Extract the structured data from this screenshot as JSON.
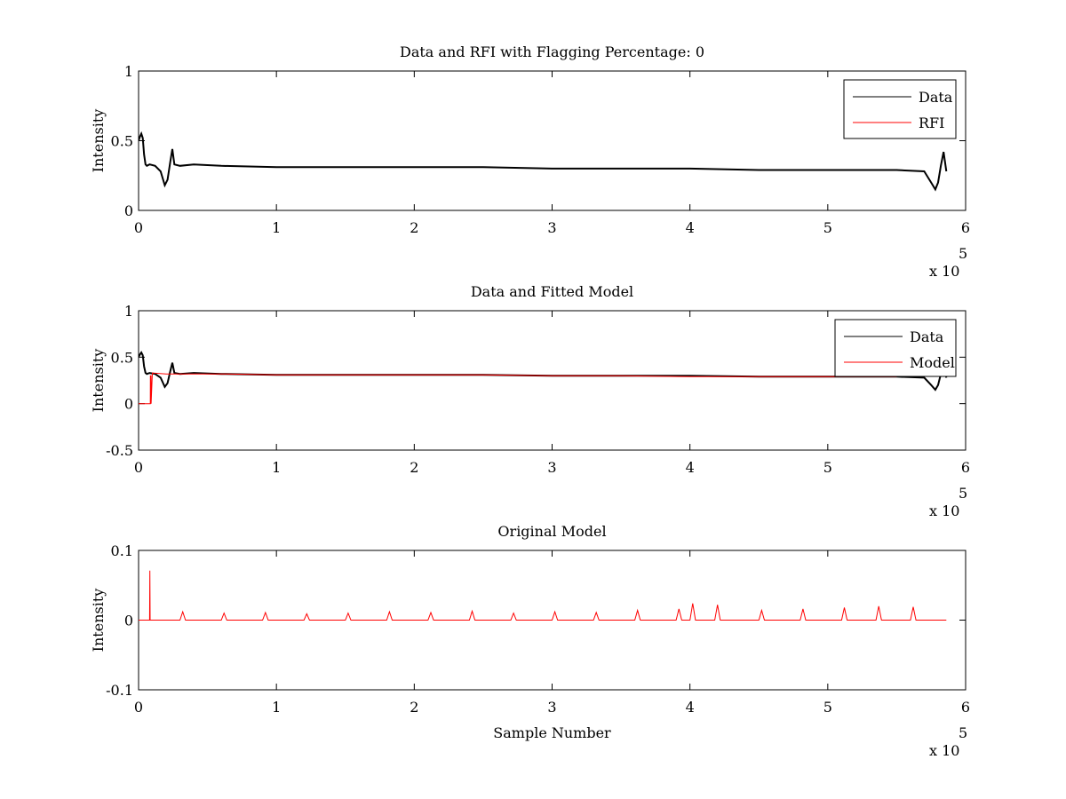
{
  "chart_data": [
    {
      "type": "line",
      "title": "Data and RFI with Flagging Percentage: 0",
      "xlabel": "",
      "ylabel": "Intensity",
      "xlim": [
        0,
        600000
      ],
      "ylim": [
        0,
        1
      ],
      "xticks": [
        0,
        1,
        2,
        3,
        4,
        5,
        6
      ],
      "yticks": [
        0,
        0.5,
        1
      ],
      "x_multiplier": "x 10",
      "x_exponent": "5",
      "legend": {
        "position": "top-right",
        "entries": [
          "Data",
          "RFI"
        ]
      },
      "series": [
        {
          "name": "Data",
          "color": "#000000",
          "x": [
            0,
            1000,
            2000,
            3000,
            4000,
            5000,
            6000,
            8000,
            12000,
            16000,
            19000,
            21000,
            23000,
            24500,
            26000,
            30000,
            40000,
            60000,
            100000,
            150000,
            200000,
            250000,
            300000,
            350000,
            400000,
            450000,
            500000,
            550000,
            570000,
            575000,
            578000,
            580000,
            582000,
            584000,
            586000
          ],
          "y": [
            0.5,
            0.53,
            0.55,
            0.52,
            0.4,
            0.33,
            0.32,
            0.33,
            0.32,
            0.28,
            0.18,
            0.22,
            0.35,
            0.44,
            0.33,
            0.32,
            0.33,
            0.32,
            0.31,
            0.31,
            0.31,
            0.31,
            0.3,
            0.3,
            0.3,
            0.29,
            0.29,
            0.29,
            0.28,
            0.2,
            0.15,
            0.2,
            0.32,
            0.42,
            0.28
          ]
        },
        {
          "name": "RFI",
          "color": "#ff0000",
          "x": [],
          "y": []
        }
      ]
    },
    {
      "type": "line",
      "title": "Data and Fitted Model",
      "xlabel": "",
      "ylabel": "Intensity",
      "xlim": [
        0,
        600000
      ],
      "ylim": [
        -0.5,
        1
      ],
      "xticks": [
        0,
        1,
        2,
        3,
        4,
        5,
        6
      ],
      "yticks": [
        -0.5,
        0,
        0.5,
        1
      ],
      "x_multiplier": "x 10",
      "x_exponent": "5",
      "legend": {
        "position": "top-right",
        "entries": [
          "Data",
          "Model"
        ]
      },
      "series": [
        {
          "name": "Data",
          "color": "#000000",
          "x": [
            0,
            1000,
            2000,
            3000,
            4000,
            5000,
            6000,
            8000,
            12000,
            16000,
            19000,
            21000,
            23000,
            24500,
            26000,
            30000,
            40000,
            60000,
            100000,
            150000,
            200000,
            250000,
            300000,
            350000,
            400000,
            450000,
            500000,
            550000,
            570000,
            575000,
            578000,
            580000,
            582000,
            584000,
            586000
          ],
          "y": [
            0.5,
            0.53,
            0.55,
            0.52,
            0.4,
            0.33,
            0.32,
            0.33,
            0.32,
            0.28,
            0.18,
            0.22,
            0.35,
            0.44,
            0.33,
            0.32,
            0.33,
            0.32,
            0.31,
            0.31,
            0.31,
            0.31,
            0.3,
            0.3,
            0.3,
            0.29,
            0.29,
            0.29,
            0.28,
            0.2,
            0.15,
            0.2,
            0.32,
            0.42,
            0.28
          ]
        },
        {
          "name": "Model",
          "color": "#ff0000",
          "x": [
            0,
            8500,
            8600,
            9000,
            9100,
            10000,
            20000,
            60000,
            100000,
            150000,
            200000,
            250000,
            300000,
            350000,
            400000,
            450000,
            500000,
            550000
          ],
          "y": [
            0.0,
            0.0,
            0.3,
            0.3,
            0.0,
            0.33,
            0.32,
            0.32,
            0.31,
            0.31,
            0.31,
            0.31,
            0.3,
            0.3,
            0.29,
            0.29,
            0.29,
            0.29
          ]
        }
      ]
    },
    {
      "type": "line",
      "title": "Original Model",
      "xlabel": "Sample Number",
      "ylabel": "Intensity",
      "xlim": [
        0,
        600000
      ],
      "ylim": [
        -0.1,
        0.1
      ],
      "xticks": [
        0,
        1,
        2,
        3,
        4,
        5,
        6
      ],
      "yticks": [
        -0.1,
        0,
        0.1
      ],
      "x_multiplier": "x 10",
      "x_exponent": "5",
      "series": [
        {
          "name": "",
          "color": "#ff0000",
          "x": [
            0,
            8000,
            8200,
            8400,
            30000,
            32000,
            34000,
            60000,
            62000,
            64000,
            90000,
            92000,
            94000,
            120000,
            122000,
            124000,
            150000,
            152000,
            154000,
            180000,
            182000,
            184000,
            210000,
            212000,
            214000,
            240000,
            242000,
            244000,
            270000,
            272000,
            274000,
            300000,
            302000,
            304000,
            330000,
            332000,
            334000,
            360000,
            362000,
            364000,
            390000,
            392000,
            394000,
            400000,
            402000,
            404000,
            418000,
            420000,
            422000,
            450000,
            452000,
            454000,
            480000,
            482000,
            484000,
            510000,
            512000,
            514000,
            535000,
            537000,
            539000,
            560000,
            562000,
            564000,
            586000
          ],
          "y": [
            0.0,
            0.0,
            0.071,
            0.0,
            0.0,
            0.012,
            0.0,
            0.0,
            0.01,
            0.0,
            0.0,
            0.011,
            0.0,
            0.0,
            0.009,
            0.0,
            0.0,
            0.01,
            0.0,
            0.0,
            0.012,
            0.0,
            0.0,
            0.011,
            0.0,
            0.0,
            0.013,
            0.0,
            0.0,
            0.01,
            0.0,
            0.0,
            0.012,
            0.0,
            0.0,
            0.011,
            0.0,
            0.0,
            0.014,
            0.0,
            0.0,
            0.016,
            0.0,
            0.0,
            0.024,
            0.0,
            0.0,
            0.022,
            0.0,
            0.0,
            0.014,
            0.0,
            0.0,
            0.016,
            0.0,
            0.0,
            0.018,
            0.0,
            0.0,
            0.02,
            0.0,
            0.0,
            0.019,
            0.0,
            0.0
          ]
        }
      ]
    }
  ]
}
